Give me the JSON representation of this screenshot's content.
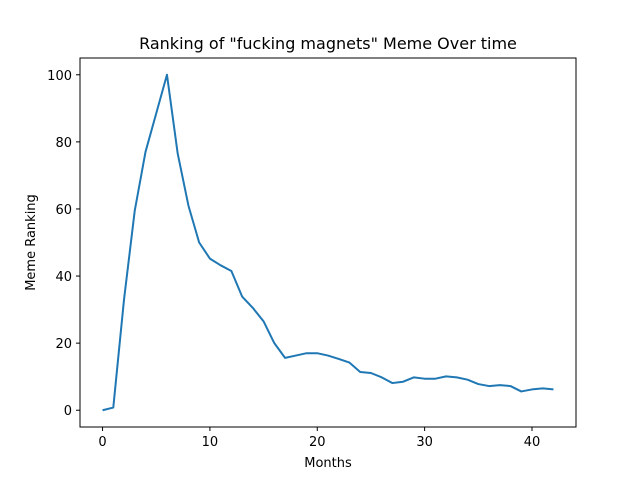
{
  "chart_data": {
    "type": "line",
    "title": "Ranking of \"fucking magnets\" Meme Over time",
    "xlabel": "Months",
    "ylabel": "Meme Ranking",
    "xlim": [
      -2.1,
      44.1
    ],
    "ylim": [
      -5,
      105
    ],
    "xticks": [
      0,
      10,
      20,
      30,
      40
    ],
    "yticks": [
      0,
      20,
      40,
      60,
      80,
      100
    ],
    "grid": false,
    "line_color": "#1f77b4",
    "series": [
      {
        "x": [
          0,
          1,
          2,
          3,
          4,
          5,
          6,
          7,
          8,
          9,
          10,
          11,
          12,
          13,
          14,
          15,
          16,
          17,
          18,
          19,
          20,
          21,
          22,
          23,
          24,
          25,
          26,
          27,
          28,
          29,
          30,
          31,
          32,
          33,
          34,
          35,
          36,
          37,
          38,
          39,
          40,
          41,
          42
        ],
        "values": [
          0,
          0.8,
          33,
          59.5,
          77,
          88.5,
          100,
          76.5,
          61,
          50,
          45.2,
          43.2,
          41.5,
          33.9,
          30.5,
          26.5,
          20,
          15.6,
          16.3,
          17,
          17,
          16.3,
          15.3,
          14.2,
          11.4,
          11.1,
          9.8,
          8.1,
          8.5,
          9.8,
          9.4,
          9.4,
          10.1,
          9.8,
          9.1,
          7.8,
          7.2,
          7.5,
          7.2,
          5.6,
          6.2,
          6.5,
          6.2
        ]
      }
    ]
  }
}
